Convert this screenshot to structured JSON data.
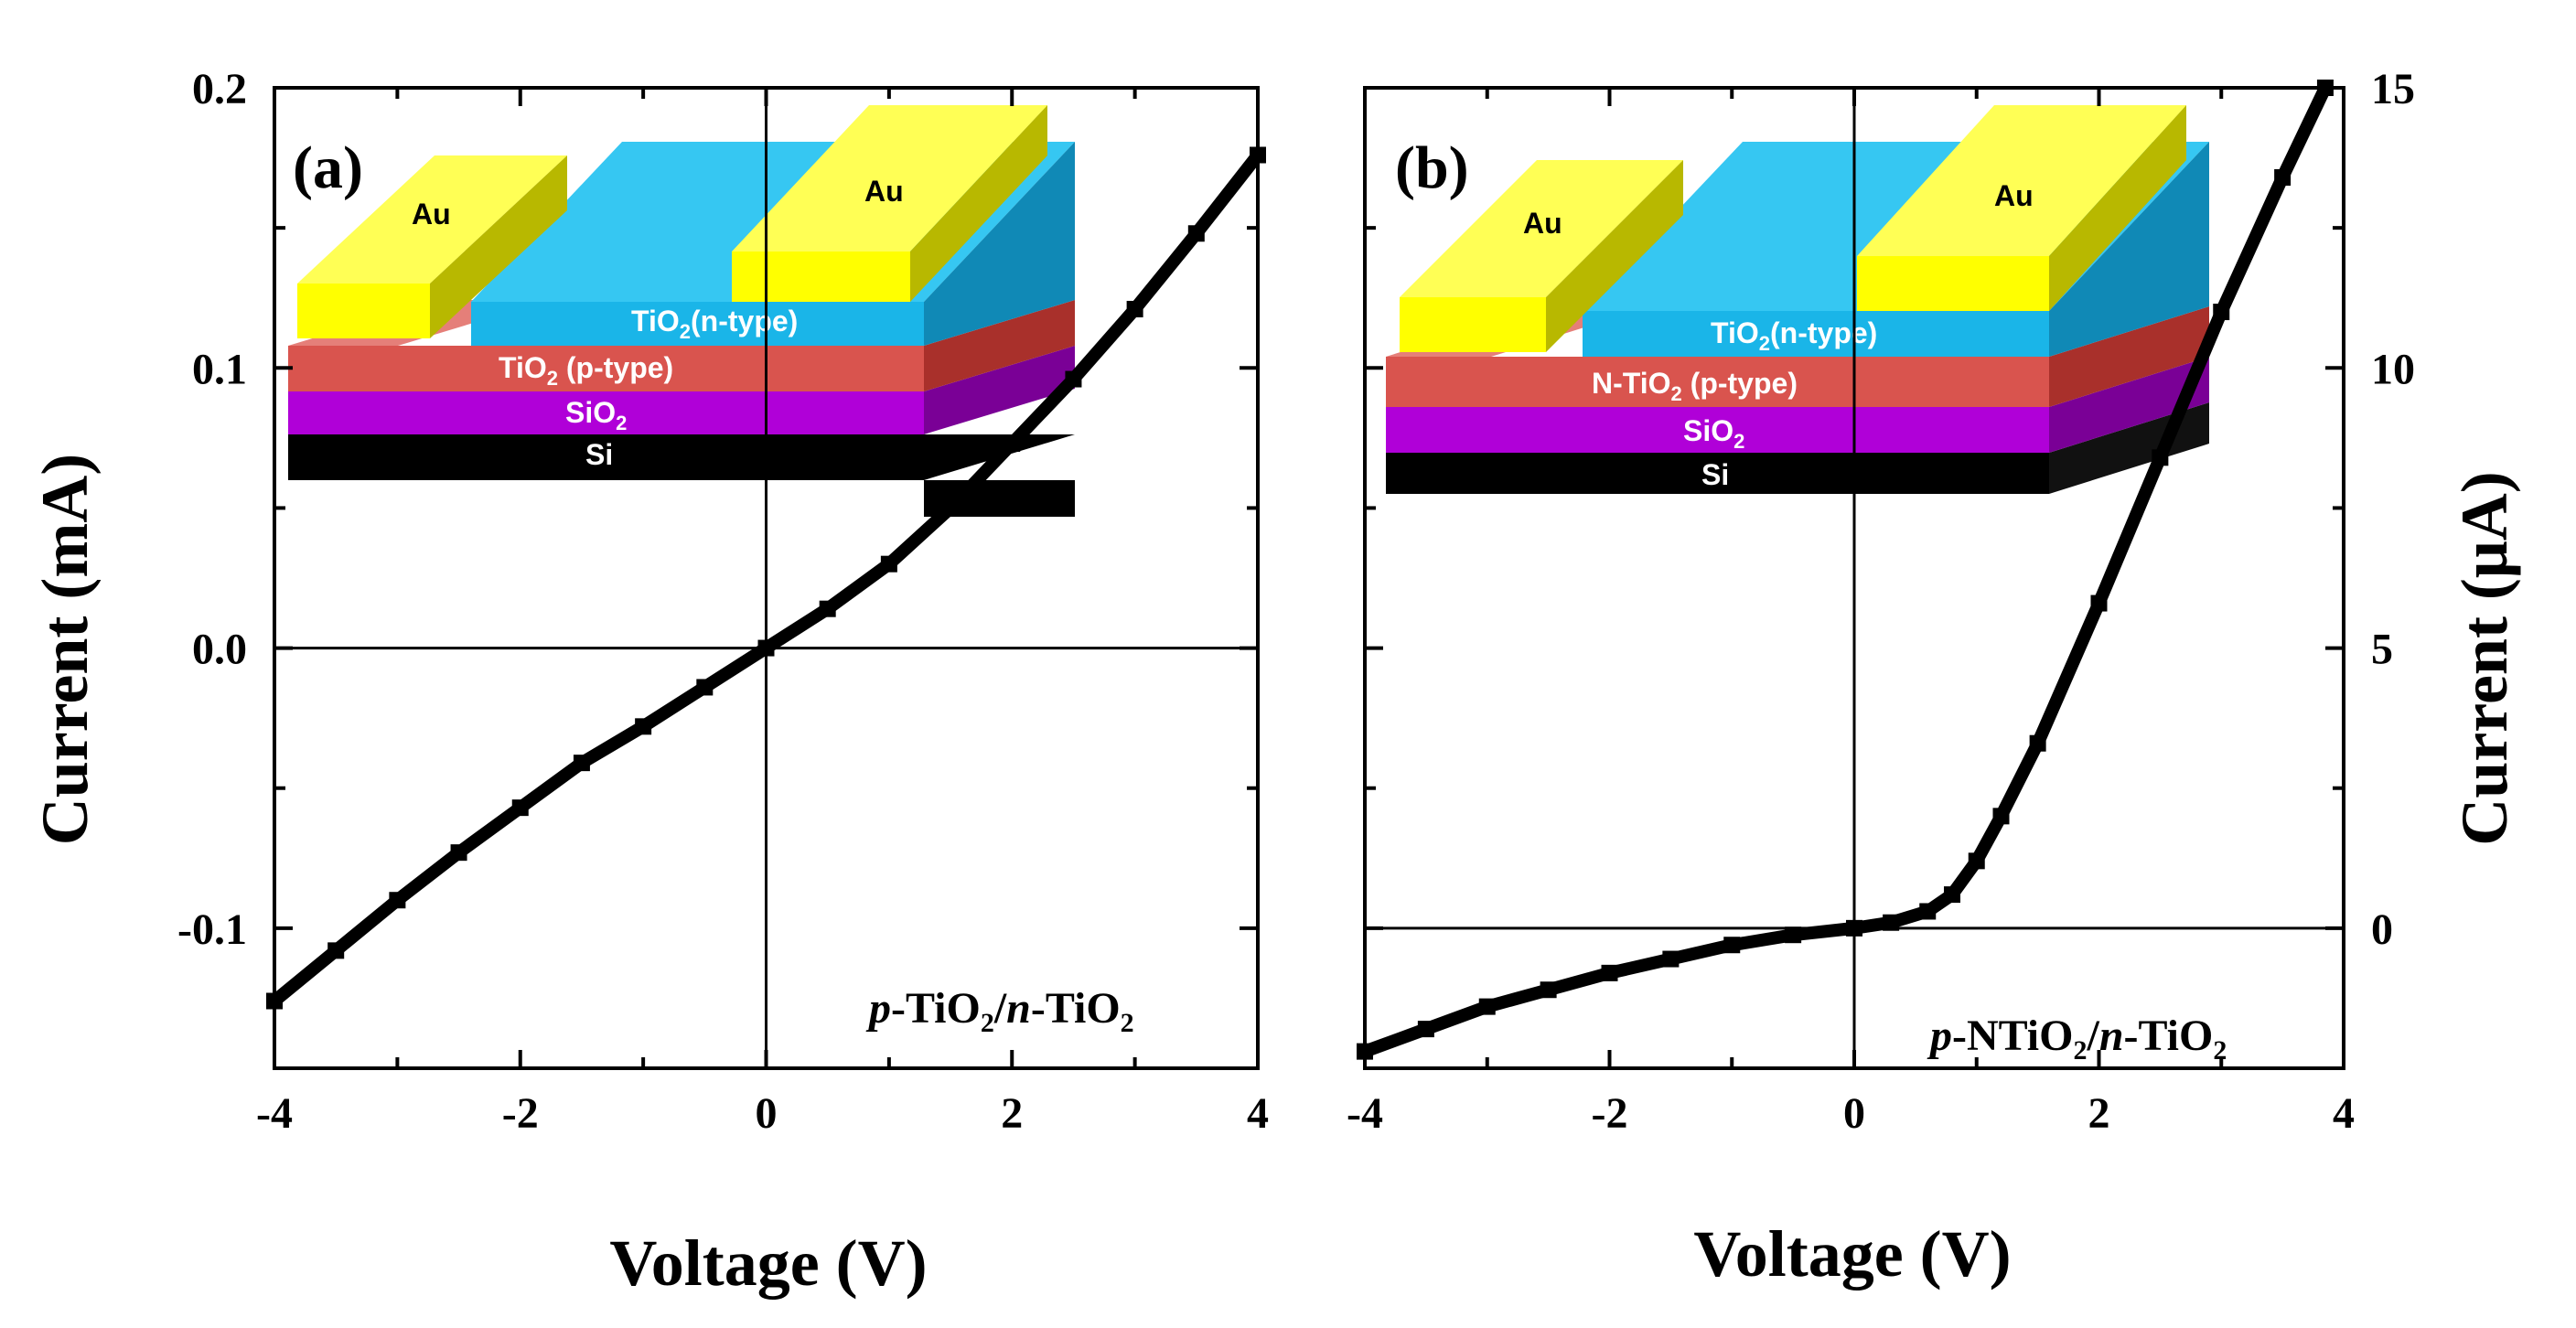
{
  "colors": {
    "gold": "#ffff00",
    "gold_side": "#b8b800",
    "gold_top": "#ffff55",
    "cyan": "#1ab5e8",
    "cyan_side": "#1089b6",
    "cyan_top": "#36c7f2",
    "red": "#d9544e",
    "red_side": "#a9302b",
    "purple": "#b000d8",
    "purple_side": "#7a0096",
    "black": "#000000",
    "black_side": "#111111",
    "axis": "#000000",
    "data": "#000000"
  },
  "chart_data": [
    {
      "type": "line",
      "panel": "(a)",
      "xlabel": "Voltage (V)",
      "ylabel": "Current (mA)",
      "xlim": [
        -4,
        4
      ],
      "ylim": [
        -0.15,
        0.2
      ],
      "x_ticks": [
        "-4",
        "-2",
        "0",
        "2",
        "4"
      ],
      "x_tick_values": [
        -4,
        -2,
        0,
        2,
        4
      ],
      "y_ticks": [
        "-0.1",
        "0.0",
        "0.1",
        "0.2"
      ],
      "y_tick_values": [
        -0.1,
        0.0,
        0.1,
        0.2
      ],
      "y_axis_side": "left",
      "annotation": {
        "p": "p",
        "a": "-TiO",
        "sub1": "2",
        "slash": "/",
        "n": "n",
        "b": "-TiO",
        "sub2": "2"
      },
      "inset": {
        "layers": [
          {
            "label": "Au",
            "role": "contact-left"
          },
          {
            "label": "Au",
            "role": "contact-right"
          },
          {
            "label_main": "TiO",
            "label_sub": "2",
            "label_rest": "(n-type)",
            "role": "n-layer"
          },
          {
            "label_main": "TiO",
            "label_sub": "2",
            "label_rest": " (p-type)",
            "role": "p-layer"
          },
          {
            "label_main": "SiO",
            "label_sub": "2",
            "label_rest": "",
            "role": "oxide"
          },
          {
            "label_main": "Si",
            "label_sub": "",
            "label_rest": "",
            "role": "substrate"
          }
        ]
      },
      "series": [
        {
          "name": "p-TiO2/n-TiO2",
          "x": [
            -4.0,
            -3.5,
            -3.0,
            -2.5,
            -2.0,
            -1.5,
            -1.0,
            -0.5,
            0.0,
            0.5,
            1.0,
            1.5,
            2.0,
            2.5,
            3.0,
            3.5,
            4.0
          ],
          "y": [
            -0.126,
            -0.108,
            -0.09,
            -0.073,
            -0.057,
            -0.041,
            -0.028,
            -0.014,
            0.0,
            0.014,
            0.03,
            0.05,
            0.073,
            0.096,
            0.121,
            0.148,
            0.176
          ]
        }
      ]
    },
    {
      "type": "line",
      "panel": "(b)",
      "xlabel": "Voltage (V)",
      "ylabel": "Current (μA)",
      "xlim": [
        -4,
        4
      ],
      "ylim": [
        -2.5,
        15
      ],
      "x_ticks": [
        "-4",
        "-2",
        "0",
        "2",
        "4"
      ],
      "x_tick_values": [
        -4,
        -2,
        0,
        2,
        4
      ],
      "y_ticks": [
        "0",
        "5",
        "10",
        "15"
      ],
      "y_tick_values": [
        0,
        5,
        10,
        15
      ],
      "y_axis_side": "right",
      "annotation": {
        "p": "p",
        "a": "-NTiO",
        "sub1": "2",
        "slash": "/",
        "n": "n",
        "b": "-TiO",
        "sub2": "2"
      },
      "inset": {
        "layers": [
          {
            "label": "Au",
            "role": "contact-left"
          },
          {
            "label": "Au",
            "role": "contact-right"
          },
          {
            "label_main": "TiO",
            "label_sub": "2",
            "label_rest": "(n-type)",
            "role": "n-layer"
          },
          {
            "label_main": "N-TiO",
            "label_sub": "2",
            "label_rest": "  (p-type)",
            "role": "p-layer"
          },
          {
            "label_main": "SiO",
            "label_sub": "2",
            "label_rest": "",
            "role": "oxide"
          },
          {
            "label_main": "Si",
            "label_sub": "",
            "label_rest": "",
            "role": "substrate"
          }
        ]
      },
      "series": [
        {
          "name": "p-NTiO2/n-TiO2",
          "x": [
            -4.0,
            -3.5,
            -3.0,
            -2.5,
            -2.0,
            -1.5,
            -1.0,
            -0.5,
            0.0,
            0.3,
            0.6,
            0.8,
            1.0,
            1.2,
            1.5,
            2.0,
            2.5,
            3.0,
            3.5,
            3.85
          ],
          "y": [
            -2.2,
            -1.8,
            -1.4,
            -1.1,
            -0.8,
            -0.55,
            -0.3,
            -0.12,
            0.0,
            0.1,
            0.3,
            0.6,
            1.2,
            2.0,
            3.3,
            5.8,
            8.4,
            11.0,
            13.4,
            15.0
          ]
        }
      ]
    }
  ]
}
